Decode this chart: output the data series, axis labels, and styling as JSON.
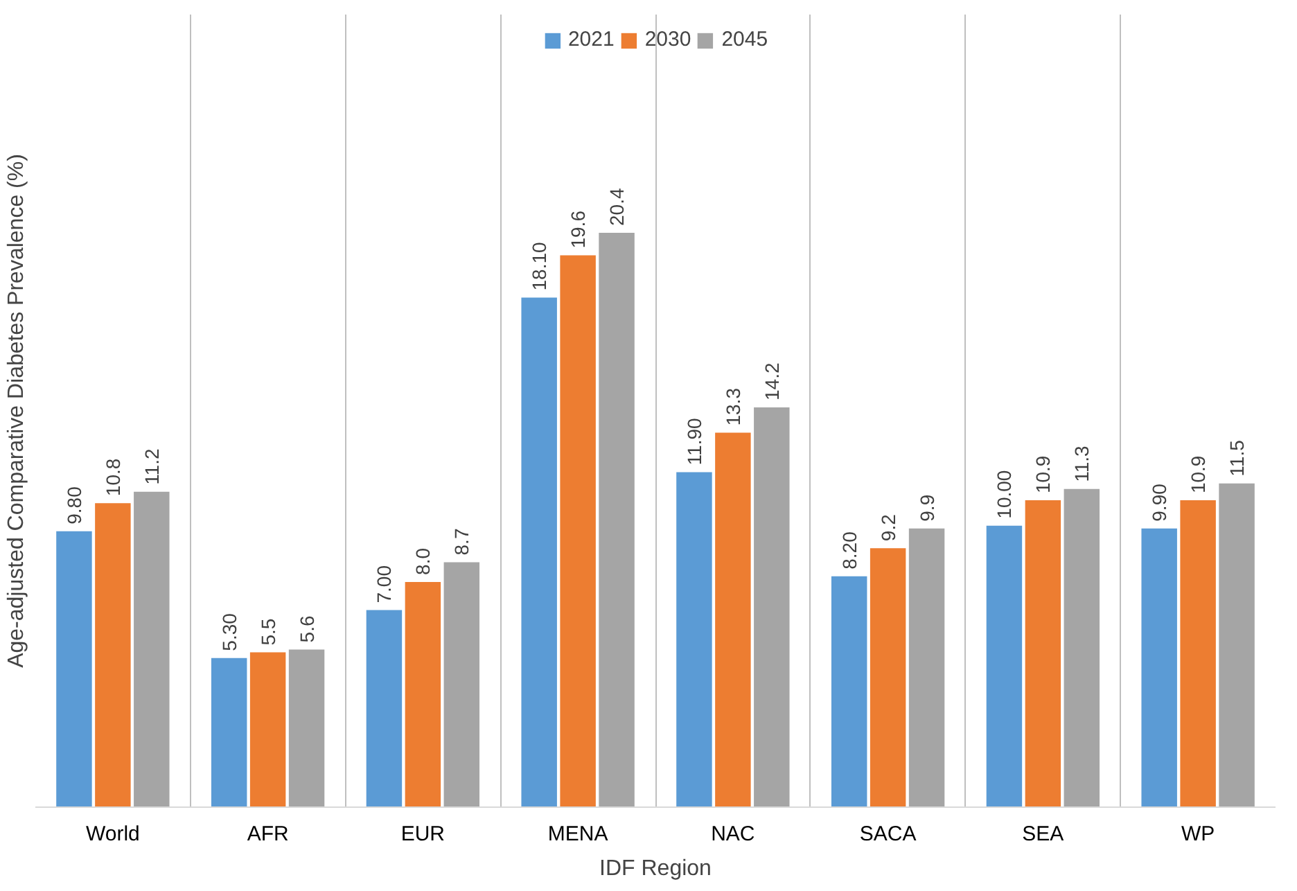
{
  "chart_data": {
    "type": "bar",
    "xlabel": "IDF Region",
    "ylabel": "Age-adjusted Comparative Diabetes Prevalence (%)",
    "categories": [
      "World",
      "AFR",
      "EUR",
      "MENA",
      "NAC",
      "SACA",
      "SEA",
      "WP"
    ],
    "series": [
      {
        "name": "2021",
        "color": "#5b9bd5",
        "values": [
          9.8,
          5.3,
          7.0,
          18.1,
          11.9,
          8.2,
          10.0,
          9.9
        ],
        "value_labels": [
          "9.80",
          "5.30",
          "7.00",
          "18.10",
          "11.90",
          "8.20",
          "10.00",
          "9.90"
        ]
      },
      {
        "name": "2030",
        "color": "#ed7d31",
        "values": [
          10.8,
          5.5,
          8.0,
          19.6,
          13.3,
          9.2,
          10.9,
          10.9
        ],
        "value_labels": [
          "10.8",
          "5.5",
          "8.0",
          "19.6",
          "13.3",
          "9.2",
          "10.9",
          "10.9"
        ]
      },
      {
        "name": "2045",
        "color": "#a5a5a5",
        "values": [
          11.2,
          5.6,
          8.7,
          20.4,
          14.2,
          9.9,
          11.3,
          11.5
        ],
        "value_labels": [
          "11.2",
          "5.6",
          "8.7",
          "20.4",
          "14.2",
          "9.9",
          "11.3",
          "11.5"
        ]
      }
    ],
    "grid": "x",
    "legend": "top"
  }
}
